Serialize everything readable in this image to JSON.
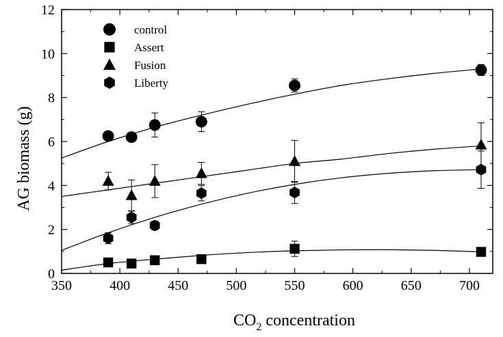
{
  "chart_data": {
    "type": "scatter",
    "xlabel": "CO",
    "xlabel_sub": "2",
    "xlabel_suffix": " concentration",
    "ylabel": "AG biomass (g)",
    "xlim": [
      350,
      720
    ],
    "ylim": [
      0,
      12
    ],
    "xticks": [
      350,
      400,
      450,
      500,
      550,
      600,
      650,
      700
    ],
    "yticks": [
      0,
      2,
      4,
      6,
      8,
      10,
      12
    ],
    "grid": false,
    "legend_position": "top-left",
    "x": [
      390,
      410,
      430,
      470,
      550,
      710
    ],
    "series": [
      {
        "name": "control",
        "marker": "circle",
        "values": [
          6.25,
          6.2,
          6.75,
          6.9,
          8.55,
          9.25
        ],
        "err": [
          0.12,
          0.1,
          0.55,
          0.45,
          0.3,
          0.25
        ],
        "fit": {
          "x": [
            350,
            390,
            430,
            470,
            510,
            550,
            590,
            630,
            670,
            710
          ],
          "y": [
            5.25,
            6.0,
            6.65,
            7.2,
            7.7,
            8.15,
            8.55,
            8.85,
            9.1,
            9.3
          ]
        }
      },
      {
        "name": "Assert",
        "marker": "square",
        "values": [
          0.5,
          0.45,
          0.6,
          0.65,
          1.12,
          0.98
        ],
        "err": [
          0.08,
          0.06,
          0.06,
          0.1,
          0.35,
          0.12
        ],
        "fit": {
          "x": [
            350,
            390,
            430,
            470,
            510,
            550,
            590,
            630,
            670,
            710
          ],
          "y": [
            0.15,
            0.45,
            0.65,
            0.82,
            0.95,
            1.03,
            1.07,
            1.08,
            1.05,
            0.98
          ]
        }
      },
      {
        "name": "Fusion",
        "marker": "triangle",
        "values": [
          4.2,
          3.55,
          4.2,
          4.55,
          5.1,
          5.85
        ],
        "err": [
          0.4,
          0.7,
          0.75,
          0.5,
          0.95,
          1.0
        ],
        "fit": {
          "x": [
            350,
            390,
            430,
            470,
            510,
            550,
            590,
            630,
            670,
            710
          ],
          "y": [
            3.5,
            3.8,
            4.1,
            4.4,
            4.7,
            5.0,
            5.2,
            5.45,
            5.65,
            5.8
          ]
        }
      },
      {
        "name": "Liberty",
        "marker": "hexagon",
        "values": [
          1.6,
          2.55,
          2.18,
          3.65,
          3.68,
          4.72
        ],
        "err": [
          0.25,
          0.28,
          0.2,
          0.35,
          0.5,
          0.85
        ],
        "fit": {
          "x": [
            350,
            390,
            430,
            470,
            510,
            550,
            590,
            630,
            670,
            710
          ],
          "y": [
            1.05,
            1.85,
            2.55,
            3.15,
            3.65,
            4.05,
            4.35,
            4.55,
            4.67,
            4.72
          ]
        }
      }
    ]
  }
}
